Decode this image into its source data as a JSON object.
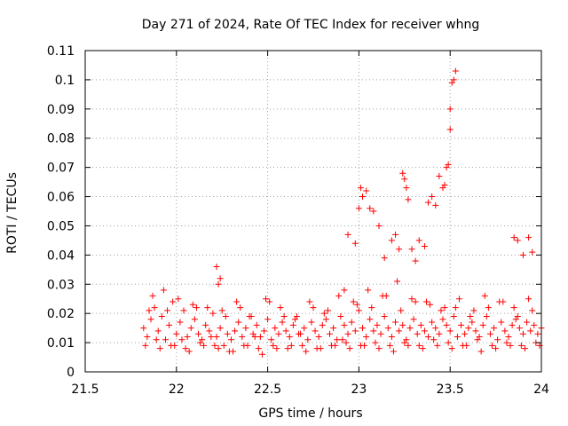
{
  "chart_data": {
    "type": "scatter",
    "title": "Day 271 of 2024, Rate Of TEC Index for receiver whng",
    "xlabel": "GPS time / hours",
    "ylabel": "ROTI / TECUs",
    "xlim": [
      21.5,
      24
    ],
    "ylim": [
      0,
      0.11
    ],
    "xticks": [
      21.5,
      22,
      22.5,
      23,
      23.5,
      24
    ],
    "xtick_labels": [
      "21.5",
      "22",
      "22.5",
      "23",
      "23.5",
      "24"
    ],
    "yticks": [
      0,
      0.01,
      0.02,
      0.03,
      0.04,
      0.05,
      0.06,
      0.07,
      0.08,
      0.09,
      0.1,
      0.11
    ],
    "ytick_labels": [
      "0",
      "0.01",
      "0.02",
      "0.03",
      "0.04",
      "0.05",
      "0.06",
      "0.07",
      "0.08",
      "0.09",
      "0.1",
      "0.11"
    ],
    "grid": true,
    "marker": "+",
    "color": "#ff0000",
    "series": [
      {
        "name": "ROTI",
        "x": [
          21.82,
          21.84,
          21.86,
          21.88,
          21.9,
          21.92,
          21.94,
          21.96,
          21.98,
          22.0,
          22.02,
          22.04,
          22.06,
          22.08,
          22.1,
          22.12,
          22.14,
          22.16,
          22.18,
          22.2,
          22.22,
          22.24,
          22.26,
          22.28,
          22.3,
          22.32,
          22.34,
          22.36,
          22.38,
          22.4,
          22.42,
          22.44,
          22.46,
          22.48,
          22.5,
          22.52,
          22.54,
          22.56,
          22.58,
          22.6,
          22.62,
          22.64,
          22.66,
          22.68,
          22.7,
          22.72,
          22.74,
          22.76,
          22.78,
          22.8,
          22.82,
          22.84,
          22.86,
          22.88,
          22.9,
          22.92,
          22.94,
          22.96,
          22.98,
          23.0,
          23.02,
          23.04,
          23.06,
          23.08,
          23.1,
          23.12,
          23.14,
          23.16,
          23.18,
          23.2,
          23.22,
          23.24,
          23.26,
          23.28,
          23.3,
          23.32,
          23.34,
          23.36,
          23.38,
          23.4,
          23.42,
          23.44,
          23.46,
          23.48,
          23.5,
          23.52,
          23.54,
          23.56,
          23.58,
          23.6,
          23.62,
          23.64,
          23.66,
          23.68,
          23.7,
          23.72,
          23.74,
          23.76,
          23.78,
          23.8,
          23.82,
          23.84,
          23.86,
          23.88,
          23.9,
          23.92,
          23.94,
          23.96,
          23.98,
          24.0,
          21.83,
          21.87,
          21.91,
          21.95,
          21.99,
          22.03,
          22.07,
          22.11,
          22.15,
          22.19,
          22.23,
          22.27,
          22.31,
          22.35,
          22.39,
          22.43,
          22.47,
          22.51,
          22.55,
          22.59,
          22.63,
          22.67,
          22.71,
          22.75,
          22.79,
          22.83,
          22.87,
          22.91,
          22.95,
          22.99,
          23.03,
          23.07,
          23.11,
          23.15,
          23.19,
          23.23,
          23.27,
          23.31,
          23.35,
          23.39,
          23.43,
          23.47,
          23.51,
          23.55,
          23.59,
          23.63,
          23.67,
          23.71,
          23.75,
          23.79,
          23.83,
          23.87,
          23.91,
          23.95,
          23.99,
          21.85,
          21.89,
          21.93,
          21.97,
          22.01,
          22.05,
          22.09,
          22.13,
          22.17,
          22.21,
          22.25,
          22.29,
          22.33,
          22.37,
          22.41,
          22.45,
          22.49,
          22.53,
          22.57,
          22.61,
          22.65,
          22.69,
          22.73,
          22.77,
          22.81,
          22.85,
          22.89,
          22.93,
          22.97,
          23.01,
          23.05,
          23.09,
          23.13,
          23.17,
          23.21,
          23.25,
          23.29,
          23.33,
          23.37,
          23.41,
          23.45,
          23.49,
          23.53,
          23.57,
          23.61,
          23.65,
          23.69,
          23.73,
          23.77,
          23.81,
          23.85,
          23.89,
          23.93,
          23.97,
          22.22,
          22.23,
          22.24,
          22.92,
          22.94,
          22.98,
          23.0,
          23.01,
          23.02,
          23.04,
          23.06,
          23.08,
          23.11,
          23.14,
          23.18,
          23.2,
          23.22,
          23.24,
          23.25,
          23.26,
          23.27,
          23.29,
          23.31,
          23.33,
          23.36,
          23.38,
          23.4,
          23.42,
          23.44,
          23.46,
          23.47,
          23.48,
          23.49,
          23.5,
          23.5,
          23.51,
          23.52,
          23.53,
          23.85,
          23.87,
          23.9,
          23.93,
          23.95
        ],
        "y": [
          0.015,
          0.012,
          0.018,
          0.022,
          0.014,
          0.019,
          0.011,
          0.016,
          0.024,
          0.013,
          0.017,
          0.021,
          0.012,
          0.015,
          0.018,
          0.013,
          0.011,
          0.016,
          0.014,
          0.02,
          0.012,
          0.015,
          0.009,
          0.013,
          0.011,
          0.014,
          0.017,
          0.012,
          0.015,
          0.019,
          0.013,
          0.016,
          0.012,
          0.014,
          0.018,
          0.011,
          0.015,
          0.013,
          0.017,
          0.014,
          0.012,
          0.016,
          0.019,
          0.013,
          0.015,
          0.011,
          0.017,
          0.014,
          0.012,
          0.016,
          0.018,
          0.013,
          0.015,
          0.011,
          0.019,
          0.016,
          0.013,
          0.017,
          0.014,
          0.021,
          0.015,
          0.012,
          0.018,
          0.014,
          0.016,
          0.013,
          0.019,
          0.015,
          0.012,
          0.017,
          0.014,
          0.016,
          0.011,
          0.015,
          0.018,
          0.013,
          0.016,
          0.014,
          0.012,
          0.017,
          0.015,
          0.013,
          0.018,
          0.016,
          0.014,
          0.019,
          0.012,
          0.016,
          0.013,
          0.015,
          0.017,
          0.014,
          0.012,
          0.016,
          0.019,
          0.013,
          0.015,
          0.011,
          0.017,
          0.014,
          0.012,
          0.016,
          0.018,
          0.015,
          0.013,
          0.017,
          0.014,
          0.016,
          0.013,
          0.015,
          0.009,
          0.026,
          0.008,
          0.021,
          0.009,
          0.011,
          0.007,
          0.022,
          0.009,
          0.012,
          0.008,
          0.019,
          0.007,
          0.022,
          0.009,
          0.012,
          0.006,
          0.024,
          0.008,
          0.019,
          0.009,
          0.013,
          0.007,
          0.022,
          0.008,
          0.021,
          0.009,
          0.011,
          0.008,
          0.023,
          0.009,
          0.022,
          0.008,
          0.026,
          0.007,
          0.021,
          0.009,
          0.024,
          0.008,
          0.023,
          0.009,
          0.022,
          0.008,
          0.025,
          0.009,
          0.021,
          0.007,
          0.022,
          0.008,
          0.024,
          0.009,
          0.019,
          0.008,
          0.021,
          0.009,
          0.021,
          0.011,
          0.028,
          0.009,
          0.025,
          0.008,
          0.023,
          0.01,
          0.022,
          0.009,
          0.021,
          0.007,
          0.024,
          0.009,
          0.019,
          0.008,
          0.025,
          0.009,
          0.022,
          0.008,
          0.018,
          0.009,
          0.024,
          0.008,
          0.02,
          0.009,
          0.026,
          0.01,
          0.024,
          0.009,
          0.028,
          0.01,
          0.026,
          0.009,
          0.031,
          0.01,
          0.025,
          0.009,
          0.024,
          0.011,
          0.021,
          0.01,
          0.022,
          0.009,
          0.019,
          0.011,
          0.026,
          0.009,
          0.024,
          0.01,
          0.022,
          0.009,
          0.025,
          0.01,
          0.036,
          0.03,
          0.032,
          0.028,
          0.047,
          0.044,
          0.056,
          0.063,
          0.06,
          0.062,
          0.056,
          0.055,
          0.05,
          0.039,
          0.045,
          0.047,
          0.042,
          0.068,
          0.066,
          0.063,
          0.059,
          0.042,
          0.038,
          0.045,
          0.043,
          0.058,
          0.06,
          0.057,
          0.067,
          0.063,
          0.064,
          0.07,
          0.071,
          0.083,
          0.09,
          0.099,
          0.1,
          0.103,
          0.046,
          0.045,
          0.04,
          0.046,
          0.041
        ]
      }
    ]
  }
}
